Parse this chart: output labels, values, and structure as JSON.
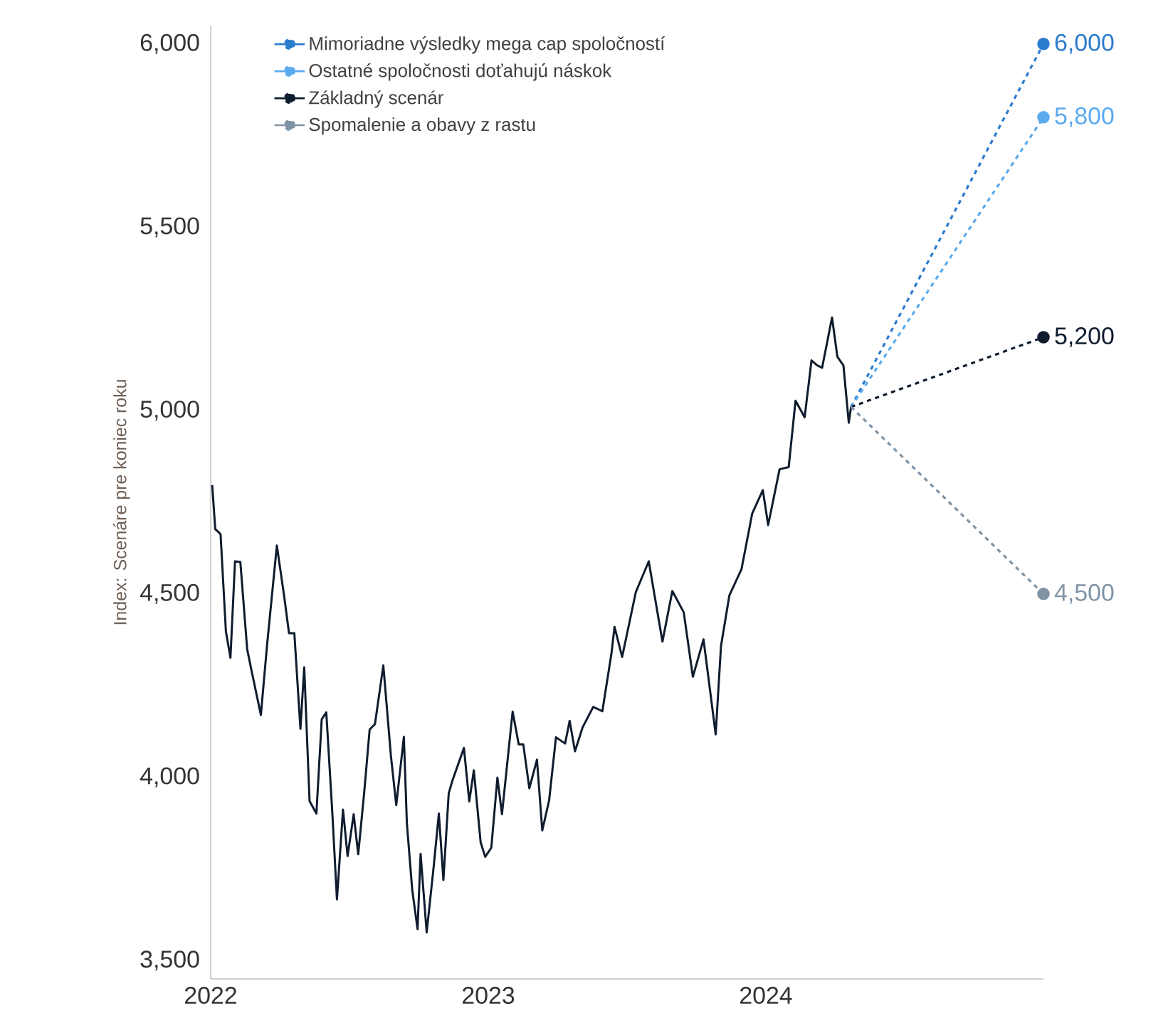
{
  "chart_data": {
    "type": "line",
    "ylabel": "Index: Scenáre pre koniec roku",
    "legend": "top left",
    "xlim": [
      "2022-01-01",
      "2024-12-31"
    ],
    "xticks": [
      {
        "value": "2022",
        "label": "2022"
      },
      {
        "value": "2023",
        "label": "2023"
      },
      {
        "value": "2024",
        "label": "2024"
      }
    ],
    "ylim": [
      3450,
      6050
    ],
    "yticks": [
      {
        "value": 3500,
        "label": "3,500"
      },
      {
        "value": 4000,
        "label": "4,000"
      },
      {
        "value": 4500,
        "label": "4,500"
      },
      {
        "value": 5000,
        "label": "5,000"
      },
      {
        "value": 5500,
        "label": "5,500"
      },
      {
        "value": 6000,
        "label": "6,000"
      }
    ],
    "series": [
      {
        "color": "#0f1c2e",
        "x": [
          "2022-01-03",
          "2022-01-07",
          "2022-01-14",
          "2022-01-21",
          "2022-01-27",
          "2022-02-02",
          "2022-02-09",
          "2022-02-18",
          "2022-02-24",
          "2022-03-08",
          "2022-03-16",
          "2022-03-29",
          "2022-04-08",
          "2022-04-14",
          "2022-04-21",
          "2022-04-29",
          "2022-05-04",
          "2022-05-11",
          "2022-05-20",
          "2022-05-27",
          "2022-06-02",
          "2022-06-10",
          "2022-06-16",
          "2022-06-24",
          "2022-06-30",
          "2022-07-08",
          "2022-07-14",
          "2022-07-22",
          "2022-07-29",
          "2022-08-05",
          "2022-08-16",
          "2022-08-26",
          "2022-09-02",
          "2022-09-12",
          "2022-09-16",
          "2022-09-23",
          "2022-09-30",
          "2022-10-04",
          "2022-10-12",
          "2022-10-21",
          "2022-10-28",
          "2022-11-03",
          "2022-11-10",
          "2022-11-15",
          "2022-11-30",
          "2022-12-07",
          "2022-12-13",
          "2022-12-22",
          "2022-12-28",
          "2023-01-05",
          "2023-01-13",
          "2023-01-19",
          "2023-02-02",
          "2023-02-10",
          "2023-02-16",
          "2023-02-24",
          "2023-03-06",
          "2023-03-13",
          "2023-03-22",
          "2023-03-31",
          "2023-04-12",
          "2023-04-18",
          "2023-04-25",
          "2023-05-05",
          "2023-05-19",
          "2023-05-31",
          "2023-06-12",
          "2023-06-16",
          "2023-06-26",
          "2023-07-14",
          "2023-07-31",
          "2023-08-18",
          "2023-08-31",
          "2023-09-15",
          "2023-09-27",
          "2023-10-11",
          "2023-10-27",
          "2023-11-03",
          "2023-11-14",
          "2023-11-30",
          "2023-12-14",
          "2023-12-28",
          "2024-01-04",
          "2024-01-19",
          "2024-01-31",
          "2024-02-09",
          "2024-02-21",
          "2024-03-01",
          "2024-03-08",
          "2024-03-15",
          "2024-03-28",
          "2024-04-04",
          "2024-04-12",
          "2024-04-19",
          "2024-04-22"
        ],
        "values": [
          4797,
          4677,
          4663,
          4398,
          4326,
          4589,
          4587,
          4349,
          4288,
          4170,
          4358,
          4632,
          4488,
          4393,
          4393,
          4132,
          4300,
          3935,
          3901,
          4158,
          4177,
          3901,
          3667,
          3912,
          3785,
          3899,
          3790,
          3962,
          4130,
          4145,
          4305,
          4058,
          3924,
          4110,
          3873,
          3693,
          3586,
          3791,
          3577,
          3752,
          3901,
          3720,
          3956,
          3992,
          4080,
          3934,
          4019,
          3822,
          3783,
          3808,
          3999,
          3899,
          4179,
          4090,
          4090,
          3970,
          4048,
          3855,
          3937,
          4109,
          4092,
          4154,
          4071,
          4136,
          4192,
          4180,
          4338,
          4410,
          4328,
          4505,
          4589,
          4370,
          4508,
          4450,
          4274,
          4376,
          4117,
          4358,
          4496,
          4568,
          4719,
          4783,
          4688,
          4840,
          4846,
          5027,
          4982,
          5137,
          5124,
          5117,
          5254,
          5147,
          5123,
          4967,
          5010
        ]
      },
      {
        "name": "Mimoriadne výsledky mega cap spoločností",
        "color": "#2b7bcd",
        "line_style": "dashed",
        "marker": "circle",
        "x": [
          "2024-04-22",
          "2024-12-31"
        ],
        "values": [
          5010,
          6000
        ],
        "value_labels": [
          null,
          "6,000"
        ]
      },
      {
        "name": "Ostatné spoločnosti doťahujú náskok",
        "color": "#5aaaee",
        "line_style": "dashed",
        "marker": "circle",
        "x": [
          "2024-04-22",
          "2024-12-31"
        ],
        "values": [
          5010,
          5800
        ],
        "value_labels": [
          null,
          "5,800"
        ]
      },
      {
        "name": "Základný scenár",
        "color": "#0f1c2e",
        "line_style": "dashed",
        "marker": "circle",
        "x": [
          "2024-04-22",
          "2024-12-31"
        ],
        "values": [
          5010,
          5200
        ],
        "value_labels": [
          null,
          "5,200"
        ]
      },
      {
        "name": "Spomalenie a obavy z rastu",
        "color": "#7f93a5",
        "line_style": "dashed",
        "marker": "circle",
        "x": [
          "2024-04-22",
          "2024-12-31"
        ],
        "values": [
          5010,
          4500
        ],
        "value_labels": [
          null,
          "4,500"
        ]
      }
    ]
  }
}
